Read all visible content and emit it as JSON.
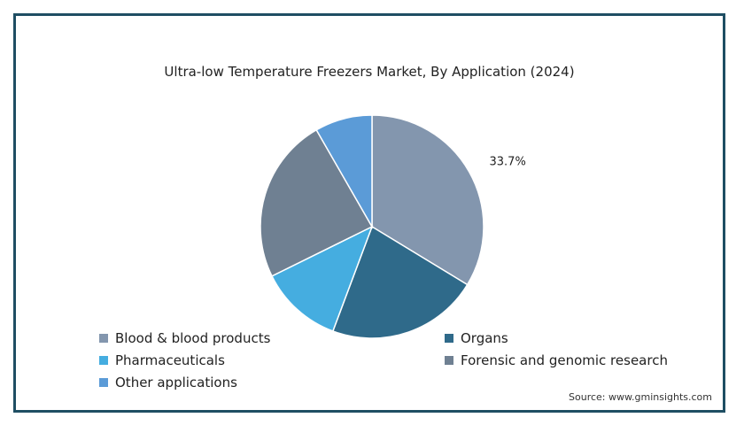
{
  "chart_data": {
    "type": "pie",
    "title": "Ultra-low Temperature Freezers Market, By Application (2024)",
    "slices": [
      {
        "name": "Blood & blood products",
        "value": 33.7,
        "color": "#8396ae",
        "label": "33.7%"
      },
      {
        "name": "Organs",
        "value": 22.0,
        "color": "#2f6a8a",
        "label": ""
      },
      {
        "name": "Pharmaceuticals",
        "value": 12.0,
        "color": "#45ade0",
        "label": ""
      },
      {
        "name": "Forensic and genomic research",
        "value": 24.0,
        "color": "#6f8092",
        "label": ""
      },
      {
        "name": "Other applications",
        "value": 8.3,
        "color": "#5b9bd7",
        "label": ""
      }
    ],
    "legend_position": "bottom-left",
    "source": "Source: www.gminsights.com"
  }
}
